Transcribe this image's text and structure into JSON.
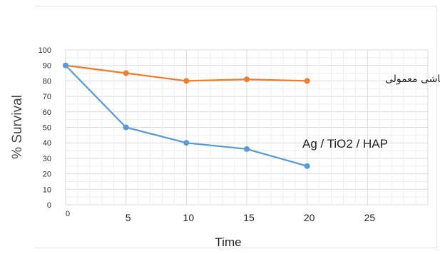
{
  "chart_data": {
    "type": "line",
    "title": "",
    "xlabel": "Time",
    "ylabel": "% Survival",
    "xlim": [
      0,
      30
    ],
    "ylim": [
      0,
      100
    ],
    "x_ticks": [
      0,
      5,
      10,
      15,
      20,
      25
    ],
    "y_ticks": [
      0,
      10,
      20,
      30,
      40,
      50,
      60,
      70,
      80,
      90,
      100
    ],
    "grid": true,
    "legend": "inline-labels",
    "series": [
      {
        "name": "کاشی معمولی",
        "color": "#ED7D31",
        "x": [
          0,
          5,
          10,
          15,
          20
        ],
        "values": [
          90,
          85,
          80,
          81,
          80
        ]
      },
      {
        "name": "Ag / TiO2 / HAP",
        "color": "#5B9BD5",
        "x": [
          0,
          5,
          10,
          15,
          20
        ],
        "values": [
          90,
          50,
          40,
          36,
          25
        ]
      }
    ]
  }
}
